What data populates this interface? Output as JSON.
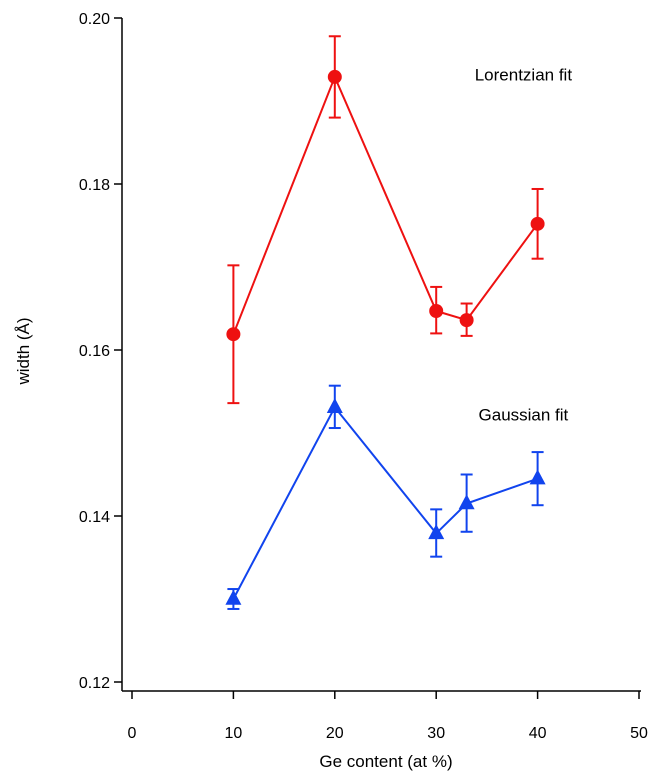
{
  "chart_data": {
    "type": "scatter",
    "xlabel": "Ge content (at %)",
    "ylabel": "width (Å)",
    "xlim": [
      0,
      50
    ],
    "ylim": [
      0.12,
      0.2
    ],
    "xticks": [
      0,
      10,
      20,
      30,
      40,
      50
    ],
    "xtick_labels": [
      "0",
      "10",
      "20",
      "30",
      "40",
      "50"
    ],
    "yticks": [
      0.12,
      0.14,
      0.16,
      0.18,
      0.2
    ],
    "ytick_labels": [
      "0.12",
      "0.14",
      "0.16",
      "0.18",
      "0.20"
    ],
    "grid": false,
    "series": [
      {
        "key": "lorentzian",
        "color": "#ee1111",
        "marker": "circle",
        "x": [
          10,
          20,
          30,
          33,
          40
        ],
        "y": [
          0.1619,
          0.1929,
          0.1647,
          0.1636,
          0.1752
        ],
        "err_low": [
          0.1536,
          0.188,
          0.162,
          0.1617,
          0.171
        ],
        "err_high": [
          0.1702,
          0.1978,
          0.1676,
          0.1656,
          0.1794
        ]
      },
      {
        "key": "gaussian",
        "color": "#1144ee",
        "marker": "triangle",
        "x": [
          10,
          20,
          30,
          33,
          40
        ],
        "y": [
          0.13,
          0.1531,
          0.1379,
          0.1415,
          0.1445
        ],
        "err_low": [
          0.1288,
          0.1506,
          0.1351,
          0.1381,
          0.1413
        ],
        "err_high": [
          0.1312,
          0.1557,
          0.1408,
          0.145,
          0.1477
        ]
      }
    ],
    "annotations": [
      {
        "key": "lorentzian",
        "text": "Lorentzian fit",
        "x": 38.6,
        "y": 0.1925
      },
      {
        "key": "gaussian",
        "text": "Gaussian fit",
        "x": 38.6,
        "y": 0.1515
      }
    ]
  }
}
